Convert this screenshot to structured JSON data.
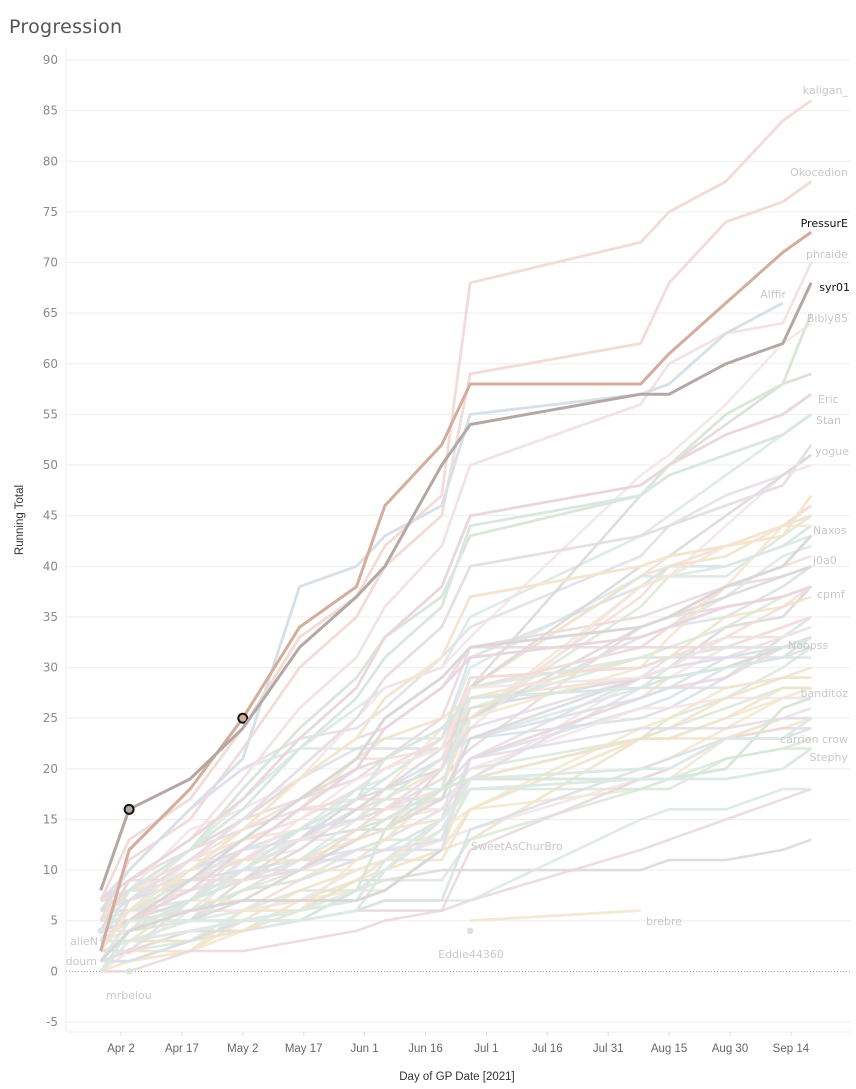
{
  "page": {
    "title": "Progression"
  },
  "chart_data": {
    "type": "line",
    "title": "Progression",
    "xlabel": "Day of GP Date [2021]",
    "ylabel": "Running Total",
    "ylim": [
      -5,
      90
    ],
    "yticks": [
      90,
      85,
      80,
      75,
      70,
      65,
      60,
      55,
      50,
      45,
      40,
      35,
      30,
      25,
      20,
      15,
      10,
      5,
      0,
      -5
    ],
    "xlim_day_of_year": [
      80,
      270
    ],
    "xticks": [
      {
        "label": "Apr 2",
        "day": 92
      },
      {
        "label": "Apr 17",
        "day": 107
      },
      {
        "label": "May 2",
        "day": 122
      },
      {
        "label": "May 17",
        "day": 137
      },
      {
        "label": "Jun 1",
        "day": 152
      },
      {
        "label": "Jun 16",
        "day": 167
      },
      {
        "label": "Jul 1",
        "day": 182
      },
      {
        "label": "Jul 16",
        "day": 197
      },
      {
        "label": "Jul 31",
        "day": 212
      },
      {
        "label": "Aug 15",
        "day": 227
      },
      {
        "label": "Aug 30",
        "day": 242
      },
      {
        "label": "Sep 14",
        "day": 257
      }
    ],
    "grid": true,
    "zero_line": true,
    "race_days": [
      87,
      94,
      109,
      122,
      136,
      150,
      157,
      171,
      178,
      220,
      227,
      241,
      255,
      262
    ],
    "highlighted_series": [
      {
        "name": "PressurE",
        "color": "#d4ad9c",
        "values": [
          2,
          12,
          18,
          25,
          34,
          38,
          46,
          52,
          58,
          58,
          61,
          66,
          71,
          73
        ],
        "markers": [
          {
            "day": 122,
            "value": 25
          }
        ]
      },
      {
        "name": "syr01",
        "color": "#b4a8a4",
        "values": [
          8,
          16,
          19,
          24,
          32,
          37,
          40,
          50,
          54,
          57,
          57,
          60,
          62,
          68
        ],
        "markers": [
          {
            "day": 94,
            "value": 16
          }
        ]
      }
    ],
    "labeled_series": [
      {
        "name": "kaligan_",
        "color": "#f3dcd7",
        "values": [
          7,
          13,
          17,
          24,
          33,
          37,
          42,
          47,
          68,
          72,
          75,
          78,
          84,
          86
        ]
      },
      {
        "name": "Okocedion",
        "color": "#f3dcd7",
        "values": [
          5,
          11,
          15,
          22,
          30,
          35,
          40,
          45,
          59,
          62,
          68,
          74,
          76,
          78
        ]
      },
      {
        "name": "phraide",
        "color": "#f2e4e6",
        "values": [
          4,
          9,
          13,
          19,
          26,
          31,
          36,
          42,
          50,
          56,
          60,
          63,
          64,
          70
        ]
      },
      {
        "name": "Alffir",
        "color": "#d7e0e6",
        "values": [
          6,
          10,
          16,
          21,
          38,
          40,
          43,
          46,
          55,
          57,
          58,
          63,
          66
        ]
      },
      {
        "name": "Bibly85",
        "color": "#d9e7d9",
        "values": [
          3,
          8,
          12,
          18,
          24,
          29,
          33,
          37,
          43,
          47,
          50,
          55,
          58,
          65
        ]
      },
      {
        "name": "Eric",
        "color": "#e9d7dc",
        "values": [
          4,
          9,
          13,
          17,
          23,
          28,
          33,
          38,
          45,
          48,
          50,
          53,
          55,
          57
        ]
      },
      {
        "name": "Stan",
        "color": "#d9e7e3",
        "values": [
          3,
          8,
          12,
          16,
          22,
          27,
          31,
          36,
          44,
          47,
          49,
          51,
          53,
          55
        ]
      },
      {
        "name": "yogue",
        "color": "#e6e0e6",
        "values": [
          2,
          7,
          11,
          15,
          20,
          25,
          29,
          34,
          40,
          43,
          44,
          46,
          48,
          52
        ]
      },
      {
        "name": "Naxos",
        "color": "#f3e6cf",
        "values": [
          2,
          6,
          10,
          14,
          19,
          23,
          27,
          31,
          37,
          40,
          41,
          42,
          43,
          47
        ]
      },
      {
        "name": "j0a0",
        "color": "#dad7d8",
        "values": [
          1,
          5,
          9,
          13,
          17,
          21,
          25,
          29,
          32,
          34,
          35,
          38,
          40,
          43
        ]
      },
      {
        "name": "cpmf",
        "color": "#ead6e1",
        "values": [
          1,
          5,
          8,
          12,
          16,
          20,
          24,
          28,
          31,
          33,
          34,
          36,
          37,
          38
        ]
      },
      {
        "name": "Noopss",
        "color": "#d9e7e3",
        "values": [
          0,
          4,
          7,
          10,
          14,
          17,
          21,
          24,
          27,
          28,
          29,
          30,
          31,
          33
        ]
      },
      {
        "name": "banditoz",
        "color": "#d9e7d9",
        "values": [
          1,
          5,
          5,
          5,
          5,
          8,
          14,
          18,
          19,
          19,
          19,
          20,
          26,
          27
        ]
      },
      {
        "name": "carrion crow",
        "color": "#dde9e6",
        "values": [
          1,
          5,
          5,
          5,
          5,
          6,
          10,
          14,
          19,
          20,
          20,
          23,
          23,
          25
        ]
      },
      {
        "name": "Stephy",
        "color": "#dde9e6",
        "values": [
          0,
          3,
          4,
          5,
          6,
          7,
          11,
          15,
          18,
          19,
          19,
          19,
          20,
          22
        ]
      },
      {
        "name": "SweetAsChurBro",
        "color": "#dad7d8",
        "values": [
          1,
          4,
          6,
          7,
          7,
          7,
          8,
          12
        ]
      },
      {
        "name": "brebre",
        "color": "#f3ead6",
        "start_day": 178,
        "values": [
          5,
          6
        ]
      },
      {
        "name": "Eddie44360",
        "color": "#e7dcdc",
        "point_only": true,
        "day": 178,
        "value": 4
      },
      {
        "name": "alieN",
        "color": "#dbe3ea",
        "point_only": true,
        "day": 87,
        "value": 4
      },
      {
        "name": "doum",
        "color": "#f1d9d9",
        "point_only": true,
        "day": 94,
        "value": 2
      },
      {
        "name": "mrbelou",
        "color": "#d9e7d9",
        "point_only": true,
        "day": 94,
        "value": 0
      }
    ],
    "background_palette": [
      "#f3dcd7",
      "#d7e0e6",
      "#d9e7d9",
      "#f3e6cf",
      "#e9d7dc",
      "#dad7d8",
      "#d9e7e3",
      "#f2e4e6",
      "#efe3c9",
      "#e2dde9"
    ],
    "background_series_count": 60
  }
}
